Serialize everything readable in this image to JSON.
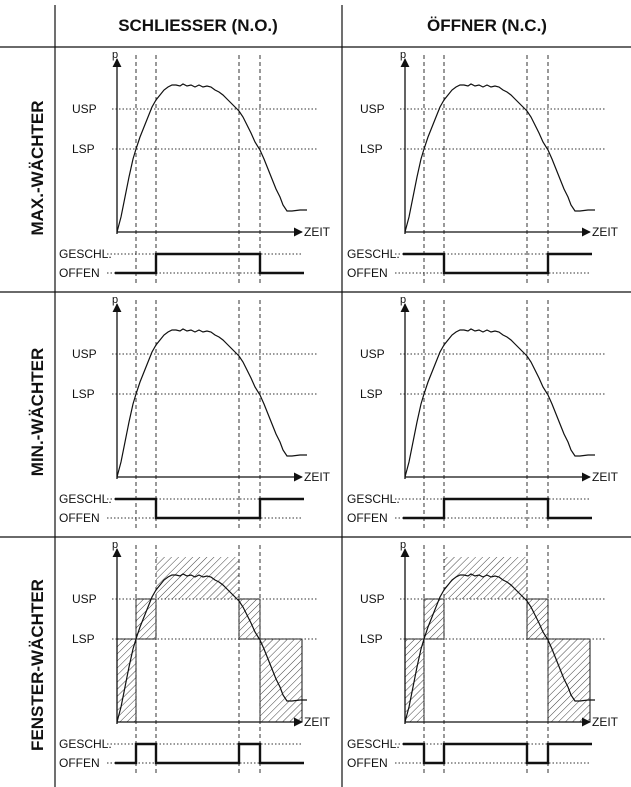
{
  "columns": [
    {
      "id": "no",
      "title": "SCHLIESSER (N.O.)"
    },
    {
      "id": "nc",
      "title": "ÖFFNER (N.C.)"
    }
  ],
  "rows": [
    {
      "id": "max",
      "title": "MAX.-WÄCHTER"
    },
    {
      "id": "min",
      "title": "MIN.-WÄCHTER"
    },
    {
      "id": "window",
      "title": "FENSTER-WÄCHTER"
    }
  ],
  "labels": {
    "pressure_axis": "p",
    "time_axis": "ZEIT",
    "upper_setpoint": "USP",
    "lower_setpoint": "LSP",
    "closed": "GESCHL.",
    "open": "OFFEN"
  },
  "panels": [
    {
      "row": "max",
      "col": "no",
      "output": [
        "OFFEN",
        "GESCHL.",
        "GESCHL.",
        "OFFEN"
      ],
      "hatched": false
    },
    {
      "row": "max",
      "col": "nc",
      "output": [
        "GESCHL.",
        "OFFEN",
        "OFFEN",
        "GESCHL."
      ],
      "hatched": false
    },
    {
      "row": "min",
      "col": "no",
      "output": [
        "GESCHL.",
        "OFFEN",
        "OFFEN",
        "GESCHL."
      ],
      "hatched": false
    },
    {
      "row": "min",
      "col": "nc",
      "output": [
        "OFFEN",
        "GESCHL.",
        "GESCHL.",
        "OFFEN"
      ],
      "hatched": false
    },
    {
      "row": "window",
      "col": "no",
      "output": [
        "OFFEN",
        "GESCHL.",
        "OFFEN",
        "GESCHL.",
        "OFFEN"
      ],
      "hatched": true
    },
    {
      "row": "window",
      "col": "nc",
      "output": [
        "GESCHL.",
        "OFFEN",
        "GESCHL.",
        "OFFEN",
        "GESCHL."
      ],
      "hatched": true
    }
  ],
  "colors": {
    "line": "#111111",
    "dotted": "#333333",
    "hatch": "#444444"
  }
}
